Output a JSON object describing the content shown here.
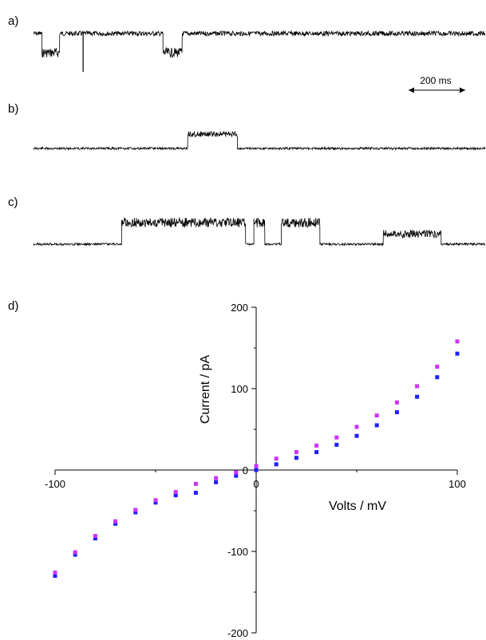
{
  "panels": {
    "a": "a)",
    "b": "b)",
    "c": "c)",
    "d": "d)"
  },
  "scale_bar": {
    "label": "200 ms"
  },
  "colors": {
    "trace": "#000000",
    "series_blue": "#1f1fff",
    "series_magenta": "#cc33ff"
  },
  "chart_data": [
    {
      "type": "line",
      "panel": "a",
      "description_levels": "baseline with downward blocking events",
      "x_unit": "ms",
      "segments": [
        {
          "x": [
            0,
            30
          ],
          "level": "open"
        },
        {
          "x": [
            30,
            95
          ],
          "level": "blocked"
        },
        {
          "x": [
            95,
            470
          ],
          "level": "open"
        },
        {
          "x": [
            470,
            540
          ],
          "level": "blocked"
        },
        {
          "x": [
            540,
            1640
          ],
          "level": "open"
        }
      ],
      "spikes_ms": [
        180
      ]
    },
    {
      "type": "line",
      "panel": "b",
      "x_unit": "ms",
      "segments": [
        {
          "x": [
            0,
            560
          ],
          "level": "closed"
        },
        {
          "x": [
            560,
            740
          ],
          "level": "open"
        },
        {
          "x": [
            740,
            1640
          ],
          "level": "closed"
        }
      ]
    },
    {
      "type": "line",
      "panel": "c",
      "x_unit": "ms",
      "segments": [
        {
          "x": [
            0,
            320
          ],
          "level": "closed"
        },
        {
          "x": [
            320,
            770
          ],
          "level": "open"
        },
        {
          "x": [
            770,
            800
          ],
          "level": "closed"
        },
        {
          "x": [
            800,
            840
          ],
          "level": "open"
        },
        {
          "x": [
            840,
            900
          ],
          "level": "closed"
        },
        {
          "x": [
            900,
            1040
          ],
          "level": "open"
        },
        {
          "x": [
            1040,
            1270
          ],
          "level": "closed"
        },
        {
          "x": [
            1270,
            1480
          ],
          "level": "partial"
        },
        {
          "x": [
            1480,
            1640
          ],
          "level": "closed"
        }
      ]
    },
    {
      "type": "scatter",
      "panel": "d",
      "xlabel": "Volts / mV",
      "ylabel": "Current / pA",
      "xlim": [
        -100,
        100
      ],
      "ylim": [
        -200,
        200
      ],
      "xticks": [
        -100,
        0,
        100
      ],
      "yticks": [
        -200,
        -100,
        0,
        100,
        200
      ],
      "grid": false,
      "series": [
        {
          "color": "#1f1fff",
          "x": [
            -100,
            -90,
            -80,
            -70,
            -60,
            -50,
            -40,
            -30,
            -20,
            -10,
            0,
            10,
            20,
            30,
            40,
            50,
            60,
            70,
            80,
            90,
            100
          ],
          "y": [
            -130,
            -104,
            -84,
            -66,
            -52,
            -40,
            -31,
            -28,
            -15,
            -7,
            0,
            7,
            15,
            22,
            31,
            42,
            55,
            71,
            90,
            114,
            143
          ]
        },
        {
          "color": "#cc33ff",
          "x": [
            -100,
            -90,
            -80,
            -70,
            -60,
            -50,
            -40,
            -30,
            -20,
            -10,
            0,
            10,
            20,
            30,
            40,
            50,
            60,
            70,
            80,
            90,
            100
          ],
          "y": [
            -126,
            -101,
            -81,
            -63,
            -49,
            -37,
            -27,
            -17,
            -10,
            -3,
            5,
            14,
            22,
            30,
            40,
            53,
            67,
            83,
            103,
            127,
            158
          ]
        }
      ]
    }
  ]
}
